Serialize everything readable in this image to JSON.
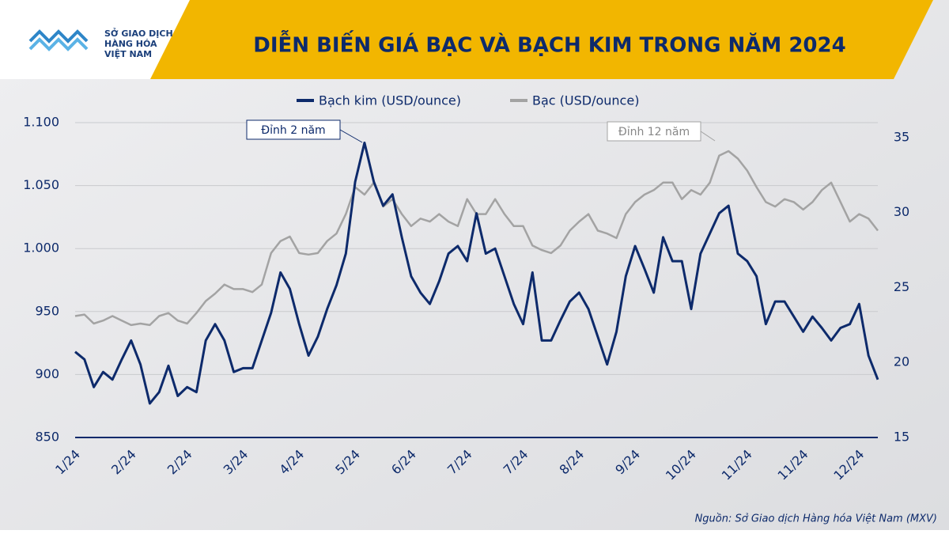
{
  "header": {
    "logo_lines": [
      "SỞ GIAO DỊCH",
      "HÀNG HÓA",
      "VIỆT NAM"
    ]
  },
  "chart_data": {
    "type": "line",
    "title": "DIỄN BIẾN GIÁ BẠC VÀ BẠCH KIM TRONG NĂM 2024",
    "source": "Nguồn: Sở Giao dịch Hàng hóa Việt Nam (MXV)",
    "annotations": [
      "Đỉnh 2 năm",
      "Đỉnh 12 năm"
    ],
    "categories": [
      "1/24",
      null,
      null,
      null,
      null,
      null,
      "2/24",
      null,
      null,
      null,
      null,
      null,
      "2/24",
      null,
      null,
      null,
      null,
      null,
      "3/24",
      null,
      null,
      null,
      null,
      null,
      "4/24",
      null,
      null,
      null,
      null,
      null,
      "5/24",
      null,
      null,
      null,
      null,
      null,
      "6/24",
      null,
      null,
      null,
      null,
      null,
      "7/24",
      null,
      null,
      null,
      null,
      null,
      "7/24",
      null,
      null,
      null,
      null,
      null,
      "8/24",
      null,
      null,
      null,
      null,
      null,
      "9/24",
      null,
      null,
      null,
      null,
      null,
      "10/24",
      null,
      null,
      null,
      null,
      null,
      "11/24",
      null,
      null,
      null,
      null,
      null,
      "11/24",
      null,
      null,
      null,
      null,
      null,
      "12/24",
      null,
      null
    ],
    "series": [
      {
        "name": "Bạch kim (USD/ounce)",
        "color": "#0d2a6b",
        "values": [
          918,
          912,
          890,
          902,
          896,
          912,
          927,
          908,
          877,
          886,
          907,
          883,
          890,
          886,
          927,
          940,
          927,
          902,
          905,
          905,
          927,
          949,
          981,
          968,
          940,
          915,
          930,
          952,
          971,
          996,
          1053,
          1084,
          1053,
          1034,
          1043,
          1009,
          978,
          965,
          956,
          974,
          996,
          1002,
          990,
          1028,
          996,
          1000,
          978,
          956,
          940,
          981,
          927,
          927,
          943,
          958,
          965,
          952,
          930,
          908,
          934,
          978,
          1002,
          984,
          965,
          1009,
          990,
          990,
          952,
          996,
          1012,
          1028,
          1034,
          996,
          990,
          978,
          940,
          958,
          958,
          946,
          934,
          946,
          937,
          927,
          937,
          940,
          956,
          915,
          896
        ]
      },
      {
        "name": "Bạc (USD/ounce)",
        "color": "#a3a3a3",
        "axis": "y2",
        "values": [
          23.1,
          23.2,
          22.6,
          22.8,
          23.1,
          22.8,
          22.5,
          22.6,
          22.5,
          23.1,
          23.3,
          22.8,
          22.6,
          23.3,
          24.1,
          24.6,
          25.2,
          24.9,
          24.9,
          24.7,
          25.2,
          27.3,
          28.1,
          28.4,
          27.3,
          27.2,
          27.3,
          28.1,
          28.6,
          29.9,
          31.7,
          31.2,
          32.0,
          30.4,
          30.9,
          29.9,
          29.1,
          29.6,
          29.4,
          29.9,
          29.4,
          29.1,
          30.9,
          29.9,
          29.9,
          30.9,
          29.9,
          29.1,
          29.1,
          27.8,
          27.5,
          27.3,
          27.8,
          28.8,
          29.4,
          29.9,
          28.8,
          28.6,
          28.3,
          29.9,
          30.7,
          31.2,
          31.5,
          32.0,
          32.0,
          30.9,
          31.5,
          31.2,
          32.0,
          33.8,
          34.1,
          33.6,
          32.8,
          31.7,
          30.7,
          30.4,
          30.9,
          30.7,
          30.2,
          30.7,
          31.5,
          32.0,
          30.7,
          29.4,
          29.9,
          29.6,
          28.8
        ]
      }
    ],
    "ylim": [
      850,
      1100
    ],
    "yticks": [
      {
        "value": 850,
        "label": "850"
      },
      {
        "value": 900,
        "label": "900"
      },
      {
        "value": 950,
        "label": "950"
      },
      {
        "value": 1000,
        "label": "1.000"
      },
      {
        "value": 1050,
        "label": "1.050"
      },
      {
        "value": 1100,
        "label": "1.100"
      }
    ],
    "y2lim": [
      15,
      36
    ],
    "y2ticks": [
      15,
      20,
      25,
      30,
      35
    ],
    "grid": true
  }
}
